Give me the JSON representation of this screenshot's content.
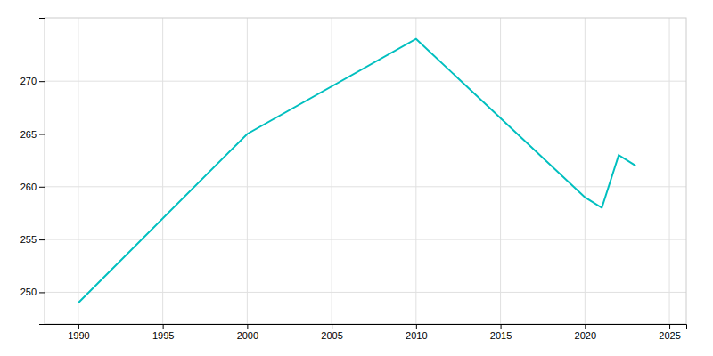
{
  "chart_data": {
    "type": "line",
    "x": [
      1990,
      2000,
      2010,
      2020,
      2021,
      2022,
      2023
    ],
    "values": [
      249,
      265,
      274,
      259,
      258,
      263,
      262
    ],
    "color": "#00BFBF",
    "xlim": [
      1988,
      2026
    ],
    "ylim": [
      247,
      276
    ],
    "xticks": [
      1990,
      1995,
      2000,
      2005,
      2010,
      2015,
      2020,
      2025
    ],
    "yticks": [
      250,
      255,
      260,
      265,
      270
    ],
    "grid": true
  }
}
